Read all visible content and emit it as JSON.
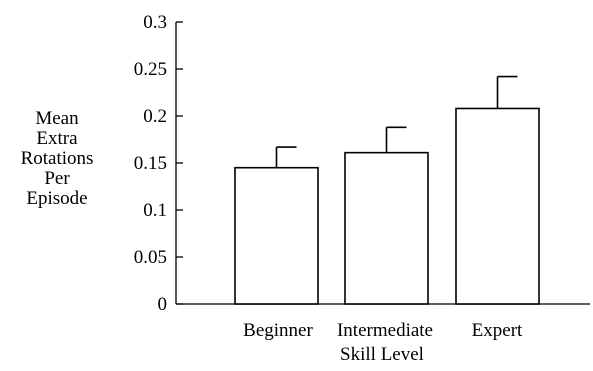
{
  "chart_data": {
    "type": "bar",
    "title": "",
    "xlabel": "Skill Level",
    "ylabel_lines": [
      "Mean",
      "Extra",
      "Rotations",
      "Per",
      "Episode"
    ],
    "categories": [
      "Beginner",
      "Intermediate",
      "Expert"
    ],
    "values": [
      0.145,
      0.161,
      0.208
    ],
    "error_upper": [
      0.167,
      0.188,
      0.242
    ],
    "ylim": [
      0,
      0.3
    ],
    "yticks": [
      0,
      0.05,
      0.1,
      0.15,
      0.2,
      0.25,
      0.3
    ],
    "ytick_labels": [
      "0",
      "0.05",
      "0.1",
      "0.15",
      "0.2",
      "0.25",
      "0.3"
    ],
    "grid": false,
    "legend": "none",
    "colors": {
      "bar_fill": "#ffffff",
      "stroke": "#000000"
    }
  }
}
